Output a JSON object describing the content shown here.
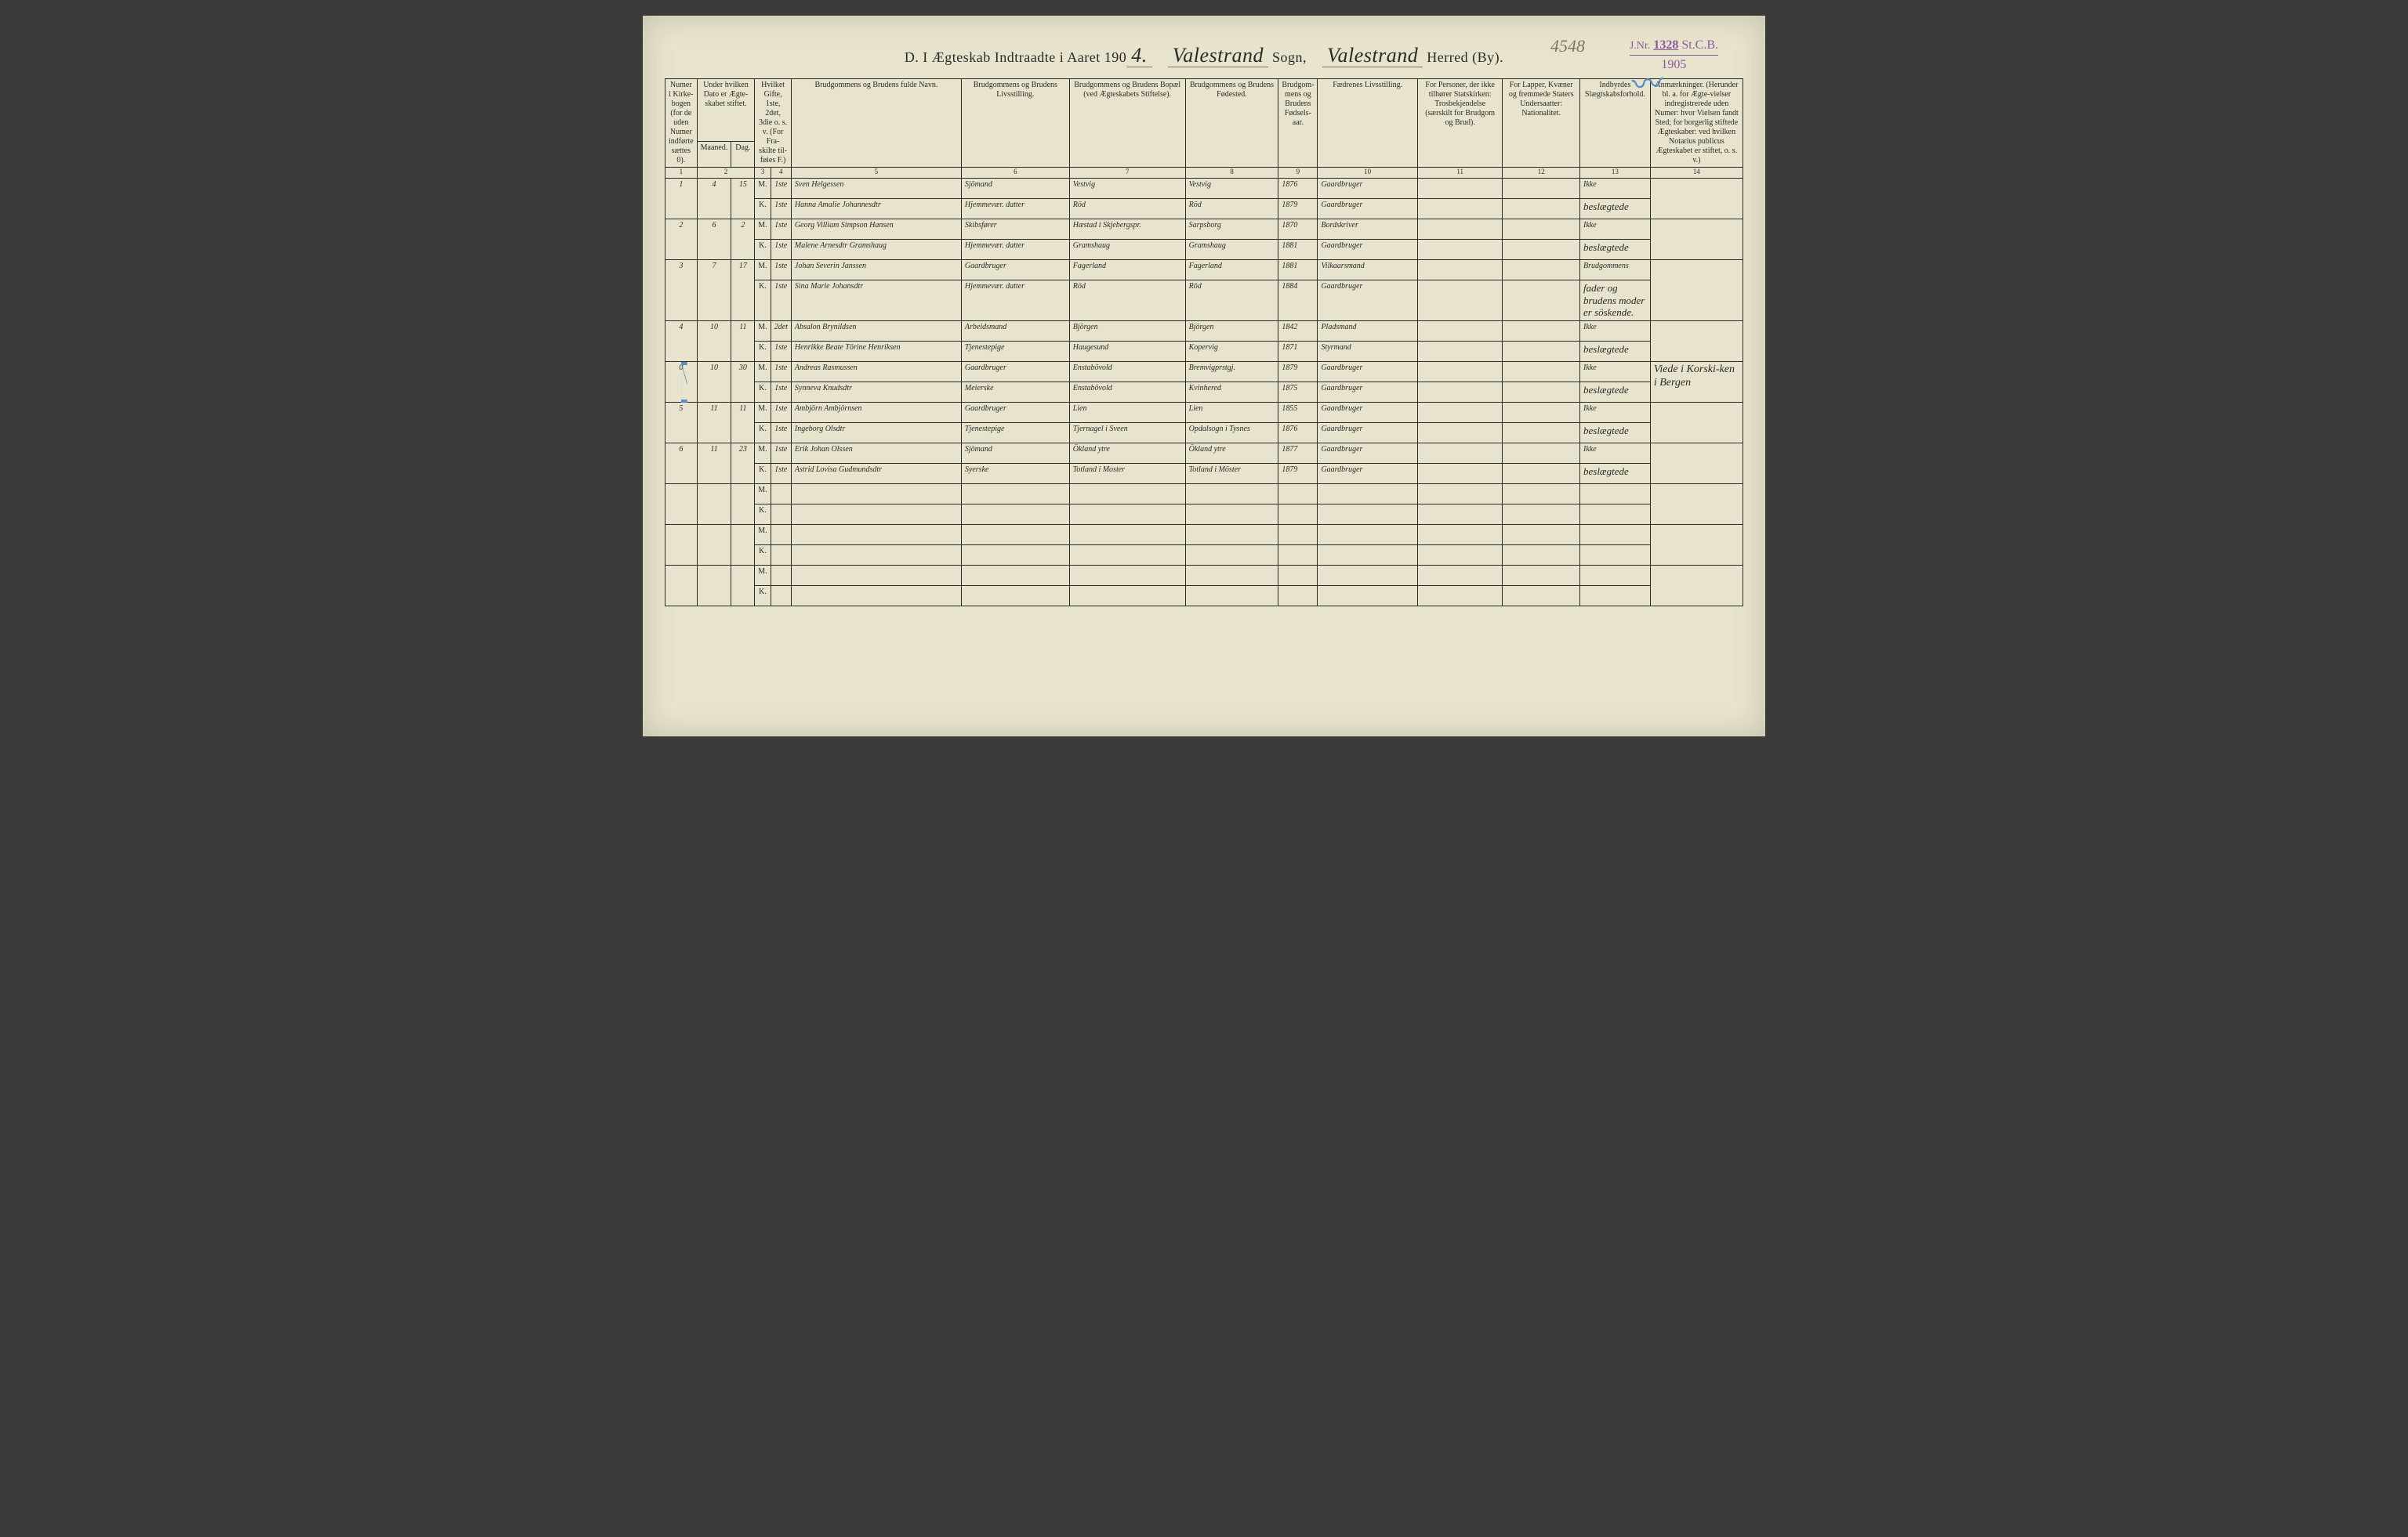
{
  "stamp": {
    "jnr_label": "J.Nr.",
    "number": "1328",
    "suffix": "St.C.B.",
    "year": "1905"
  },
  "pencil_note": "4548",
  "header": {
    "pre": "D.  I Ægteskab Indtraadte i Aaret 190",
    "year_digit": "4.",
    "sogn_value": "Valestrand",
    "sogn_label": "Sogn,",
    "herred_value": "Valestrand",
    "herred_label": "Herred (By)."
  },
  "columns": {
    "c1": "Numer i Kirke-bogen (for de uden Numer indførte sættes 0).",
    "c2a": "Under hvilken Dato er Ægte-skabet stiftet.",
    "c2_m": "Maaned.",
    "c2_d": "Dag.",
    "c3": "Hvilket Gifte, 1ste, 2det, 3die o. s. v. (For Fra-skilte til-føies F.)",
    "c5": "Brudgommens og Brudens fulde Navn.",
    "c6": "Brudgommens og Brudens Livsstilling.",
    "c7": "Brudgommens og Brudens Bopæl (ved Ægteskabets Stiftelse).",
    "c8": "Brudgommens og Brudens Fødested.",
    "c9": "Brudgom-mens og Brudens Fødsels-aar.",
    "c10": "Fædrenes Livsstilling.",
    "c11": "For Personer, der ikke tilhører Statskirken: Trosbekjendelse (særskilt for Brudgom og Brud).",
    "c12": "For Lapper, Kvæner og fremmede Staters Undersaatter: Nationalitet.",
    "c13": "Indbyrdes Slægtskabsforhold.",
    "c14": "Anmærkninger. (Herunder bl. a. for Ægte-vielser indregistrerede uden Numer: hvor Vielsen fandt Sted; for borgerlig stiftede Ægteskaber: ved hvilken Notarius publicus Ægteskabet er stiftet, o. s. v.)"
  },
  "colnums": [
    "1",
    "2",
    "3",
    "4",
    "5",
    "6",
    "7",
    "8",
    "9",
    "10",
    "11",
    "12",
    "13",
    "14"
  ],
  "mk": {
    "m": "M.",
    "k": "K."
  },
  "entries": [
    {
      "num": "1",
      "maaned": "4",
      "dag": "15",
      "m": {
        "gifte": "1ste",
        "navn": "Sven Helgessen",
        "liv": "Sjömand",
        "bopal": "Vestvig",
        "fod": "Vestvig",
        "aar": "1876",
        "faedr": "Gaardbruger"
      },
      "k": {
        "gifte": "1ste",
        "navn": "Hanna Amalie Johannesdtr",
        "liv": "Hjemmevær. datter",
        "bopal": "Röd",
        "fod": "Röd",
        "aar": "1879",
        "faedr": "Gaardbruger"
      },
      "slaegt_m": "Ikke",
      "slaegt_k": "beslægtede",
      "anm": ""
    },
    {
      "num": "2",
      "maaned": "6",
      "dag": "2",
      "m": {
        "gifte": "1ste",
        "navn": "Georg Villiam Simpson Hansen",
        "liv": "Skibsfører",
        "bopal": "Hæstad i Skjebergspr.",
        "fod": "Sarpsborg",
        "aar": "1870",
        "faedr": "Bordskriver"
      },
      "k": {
        "gifte": "1ste",
        "navn": "Malene Arnesdtr Gramshaug",
        "liv": "Hjemmevær. datter",
        "bopal": "Gramshaug",
        "fod": "Gramshaug",
        "aar": "1881",
        "faedr": "Gaardbruger"
      },
      "slaegt_m": "Ikke",
      "slaegt_k": "beslægtede",
      "anm": ""
    },
    {
      "num": "3",
      "maaned": "7",
      "dag": "17",
      "m": {
        "gifte": "1ste",
        "navn": "Johan Severin Janssen",
        "liv": "Gaardbruger",
        "bopal": "Fagerland",
        "fod": "Fagerland",
        "aar": "1881",
        "faedr": "Vilkaarsmand"
      },
      "k": {
        "gifte": "1ste",
        "navn": "Sina Marie Johansdtr",
        "liv": "Hjemmevær. datter",
        "bopal": "Röd",
        "fod": "Röd",
        "aar": "1884",
        "faedr": "Gaardbruger"
      },
      "slaegt_m": "Brudgommens",
      "slaegt_k": "fader og brudens moder er söskende.",
      "anm": ""
    },
    {
      "num": "4",
      "maaned": "10",
      "dag": "11",
      "m": {
        "gifte": "2det",
        "navn": "Absalon Brynildsen",
        "liv": "Arbeidsmand",
        "bopal": "Björgen",
        "fod": "Björgen",
        "aar": "1842",
        "faedr": "Pladsmand"
      },
      "k": {
        "gifte": "1ste",
        "navn": "Henrikke Beate Törine Henriksen",
        "liv": "Tjenestepige",
        "bopal": "Haugesund",
        "fod": "Kopervig",
        "aar": "1871",
        "faedr": "Styrmand"
      },
      "slaegt_m": "Ikke",
      "slaegt_k": "beslægtede",
      "anm": ""
    },
    {
      "num": "0",
      "maaned": "10",
      "dag": "30",
      "struck": true,
      "m": {
        "gifte": "1ste",
        "navn": "Andreas Rasmussen",
        "liv": "Gaardbruger",
        "bopal": "Enstabövold",
        "fod": "Bremvigprstgj.",
        "aar": "1879",
        "faedr": "Gaardbruger"
      },
      "k": {
        "gifte": "1ste",
        "navn": "Synneva Knudsdtr",
        "liv": "Meierske",
        "bopal": "Enstabövold",
        "fod": "Kvinhered",
        "aar": "1875",
        "faedr": "Gaardbruger"
      },
      "slaegt_m": "Ikke",
      "slaegt_k": "beslægtede",
      "anm": "Viede i Korski-ken i Bergen"
    },
    {
      "num": "5",
      "maaned": "11",
      "dag": "11",
      "m": {
        "gifte": "1ste",
        "navn": "Ambjörn Ambjörnsen",
        "liv": "Gaardbruger",
        "bopal": "Lien",
        "fod": "Lien",
        "aar": "1855",
        "faedr": "Gaardbruger"
      },
      "k": {
        "gifte": "1ste",
        "navn": "Ingeborg Olsdtr",
        "liv": "Tjenestepige",
        "bopal": "Tjernagel i Sveen",
        "fod": "Opdalsogn i Tysnes",
        "aar": "1876",
        "faedr": "Gaardbruger"
      },
      "slaegt_m": "Ikke",
      "slaegt_k": "beslægtede",
      "anm": ""
    },
    {
      "num": "6",
      "maaned": "11",
      "dag": "23",
      "m": {
        "gifte": "1ste",
        "navn": "Erik Johan Olssen",
        "liv": "Sjömand",
        "bopal": "Ökland ytre",
        "fod": "Ökland ytre",
        "aar": "1877",
        "faedr": "Gaardbruger"
      },
      "k": {
        "gifte": "1ste",
        "navn": "Astrid Lovisa Gudmundsdtr",
        "liv": "Syerske",
        "bopal": "Totland i Moster",
        "fod": "Totland i Möster",
        "aar": "1879",
        "faedr": "Gaardbruger"
      },
      "slaegt_m": "Ikke",
      "slaegt_k": "beslægtede",
      "anm": ""
    }
  ],
  "empty_rows": 3,
  "strike_color": "#5a8cc4"
}
